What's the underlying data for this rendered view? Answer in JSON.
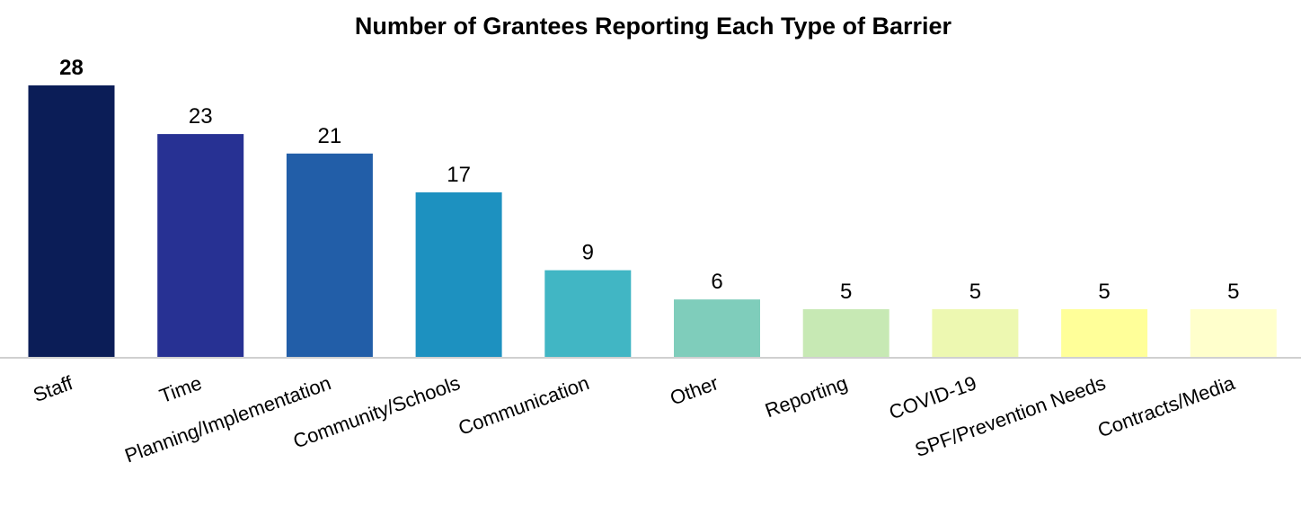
{
  "chart_data": {
    "type": "bar",
    "title": "Number of Grantees Reporting Each Type of Barrier",
    "xlabel": "",
    "ylabel": "",
    "categories": [
      "Staff",
      "Time",
      "Planning/Implementation",
      "Community/Schools",
      "Communication",
      "Other",
      "Reporting",
      "COVID-19",
      "SPF/Prevention Needs",
      "Contracts/Media"
    ],
    "values": [
      28,
      23,
      21,
      17,
      9,
      6,
      5,
      5,
      5,
      5
    ],
    "value_labels": [
      "28",
      "23",
      "21",
      "17",
      "9",
      "6",
      "5",
      "5",
      "5",
      "5"
    ],
    "bold_value_index": 0,
    "ylim": [
      0,
      28
    ],
    "grid": false,
    "legend": "none",
    "bar_colors": [
      "#0b1d57",
      "#273193",
      "#225ea8",
      "#1d91c0",
      "#41b6c4",
      "#7fcdbb",
      "#c7e9b4",
      "#edf8b1",
      "#ffff99",
      "#ffffcc"
    ],
    "axis_color": "#d0d0d0"
  }
}
